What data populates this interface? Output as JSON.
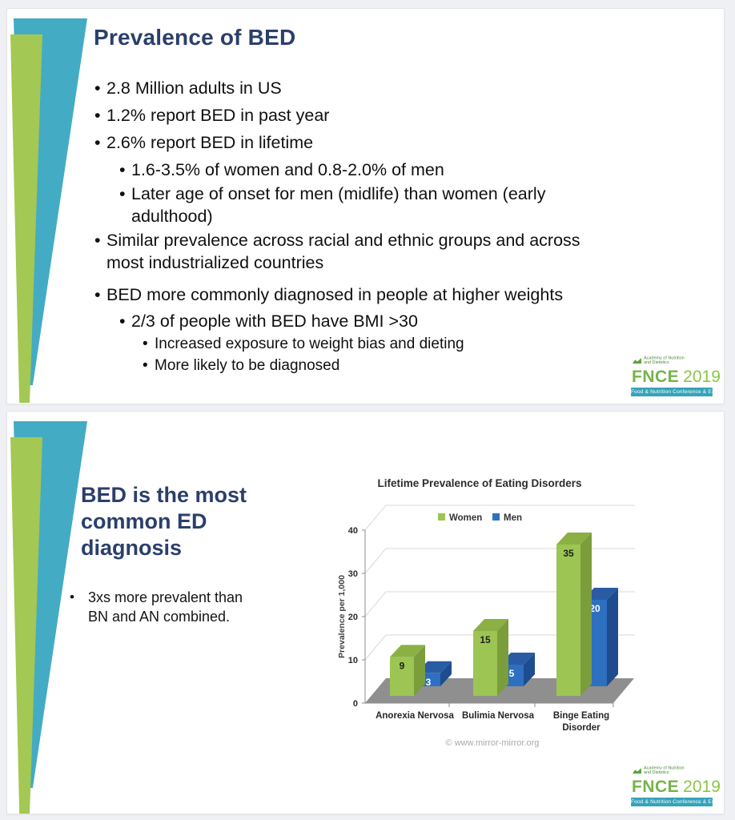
{
  "theme": {
    "title_color": "#2B3F6B",
    "wedge_green": "#A3C853",
    "wedge_teal": "#44ABC4",
    "body_text": "#101010"
  },
  "slide1": {
    "title": "Prevalence of BED",
    "bullets": [
      {
        "level": 1,
        "text": "2.8 Million adults in US"
      },
      {
        "level": 1,
        "text": "1.2% report BED in past year"
      },
      {
        "level": 1,
        "text": "2.6% report BED in lifetime"
      },
      {
        "level": 2,
        "text": "1.6-3.5% of women and 0.8-2.0% of men"
      },
      {
        "level": 2,
        "text": "Later age of onset for men (midlife) than women (early\nadulthood)"
      },
      {
        "level": 1,
        "text": "Similar prevalence across racial and ethnic groups and across\nmost industrialized countries"
      },
      {
        "level": 1,
        "text": "BED more commonly diagnosed in people at higher weights"
      },
      {
        "level": 2,
        "text": "2/3 of people with BED have BMI >30"
      },
      {
        "level": 3,
        "text": "Increased exposure to weight bias and dieting"
      },
      {
        "level": 3,
        "text": "More likely to be diagnosed"
      }
    ]
  },
  "slide2": {
    "title": "BED is the most\ncommon ED\ndiagnosis",
    "bullet_marker": "•",
    "bullet": "3xs more prevalent than\nBN and AN combined."
  },
  "chart_data": {
    "type": "bar",
    "style": "3d-column",
    "title": "Lifetime Prevalence of Eating Disorders",
    "categories": [
      "Anorexia Nervosa",
      "Bulimia Nervosa",
      "Binge Eating\nDisorder"
    ],
    "series": [
      {
        "name": "Women",
        "values": [
          9,
          15,
          35
        ],
        "color": "#9DC553",
        "color_top": "#8BB044",
        "color_side": "#7B9D3C",
        "label_color": "#1F1F1F"
      },
      {
        "name": "Men",
        "values": [
          3,
          5,
          20
        ],
        "color": "#2E6FC0",
        "color_top": "#2A5CA6",
        "color_side": "#1E4C8F",
        "label_color": "#FFFFFF"
      }
    ],
    "xlabel": "",
    "ylabel": "Prevalence per 1,000",
    "ylim": [
      0,
      40
    ],
    "ytick_step": 10,
    "grid": true,
    "legend_position": "top-center",
    "attribution": "© www.mirror-mirror.org"
  },
  "logo": {
    "academy": "Academy of Nutrition\nand Dietetics",
    "name": "FNCE",
    "year": "2019",
    "tagline": "Food & Nutrition Conference & Expo",
    "green": "#77B34A",
    "teal": "#36A3BA"
  }
}
